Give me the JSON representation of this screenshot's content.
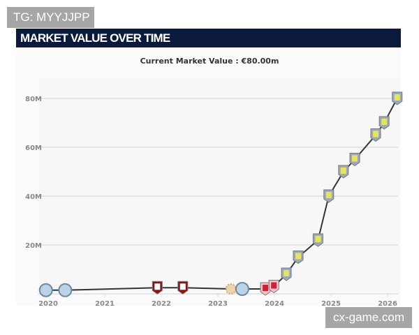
{
  "watermarks": {
    "top_left": "TG: MYYJJPP",
    "bottom_right": "cx-game.com"
  },
  "header": {
    "title": "MARKET VALUE OVER TIME"
  },
  "current_value": "Current Market Value : €80.00m",
  "colors": {
    "header_bg": "#0b1a3c",
    "line": "#333333",
    "grid": "#dddddd"
  },
  "chart_data": {
    "type": "line",
    "title": "",
    "xlabel": "",
    "ylabel": "",
    "x_ticks": [
      "2020",
      "2021",
      "2022",
      "2023",
      "2024",
      "2025",
      "2026"
    ],
    "y_ticks": [
      "20M",
      "40M",
      "60M",
      "80M"
    ],
    "xlim": [
      2019.9,
      2026.25
    ],
    "ylim": [
      0,
      85
    ],
    "grid": "horizontal",
    "series": [
      {
        "points": [
          {
            "x": 2019.96,
            "y": 1.5,
            "club": "man-city-crest"
          },
          {
            "x": 2020.3,
            "y": 1.5,
            "club": "man-city-crest"
          },
          {
            "x": 2021.93,
            "y": 2.5,
            "club": "bournemouth-crest"
          },
          {
            "x": 2022.38,
            "y": 2.5,
            "club": "bournemouth-crest"
          },
          {
            "x": 2023.23,
            "y": 2,
            "club": "sun-crest"
          },
          {
            "x": 2023.43,
            "y": 2,
            "club": "man-city-crest"
          },
          {
            "x": 2023.84,
            "y": 2,
            "club": "middlesbrough-crest"
          },
          {
            "x": 2023.99,
            "y": 3,
            "club": "middlesbrough-crest"
          },
          {
            "x": 2024.21,
            "y": 8,
            "club": "aston-villa-crest"
          },
          {
            "x": 2024.42,
            "y": 15,
            "club": "aston-villa-crest"
          },
          {
            "x": 2024.77,
            "y": 22,
            "club": "aston-villa-crest"
          },
          {
            "x": 2024.96,
            "y": 40,
            "club": "aston-villa-crest"
          },
          {
            "x": 2025.22,
            "y": 50,
            "club": "aston-villa-crest"
          },
          {
            "x": 2025.42,
            "y": 55,
            "club": "aston-villa-crest"
          },
          {
            "x": 2025.79,
            "y": 65,
            "club": "aston-villa-crest"
          },
          {
            "x": 2025.94,
            "y": 70,
            "club": "aston-villa-crest"
          },
          {
            "x": 2026.17,
            "y": 80,
            "club": "aston-villa-crest"
          }
        ]
      }
    ]
  }
}
